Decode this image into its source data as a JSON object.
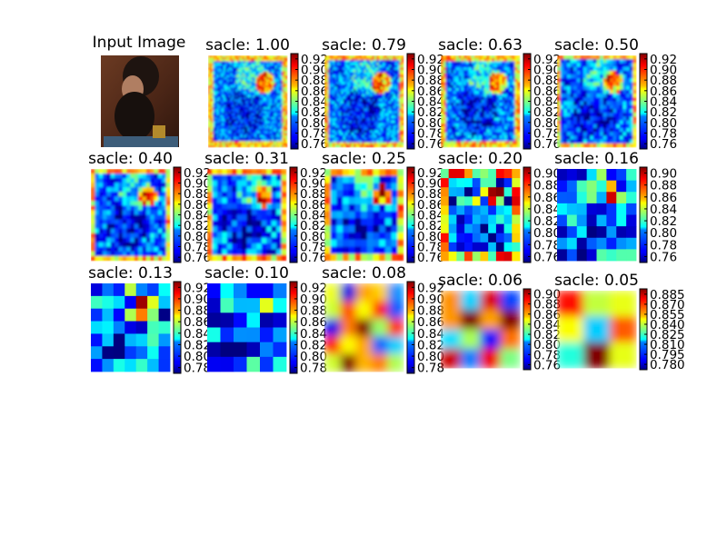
{
  "figure": {
    "input_title": "Input Image"
  },
  "chart_data": [
    {
      "type": "heatmap",
      "title": "sacle: 1.00",
      "colormap": "jet",
      "colorbar_ticks": [
        "0.92",
        "0.90",
        "0.88",
        "0.86",
        "0.84",
        "0.82",
        "0.80",
        "0.78",
        "0.76"
      ],
      "colorbar_range": [
        0.75,
        0.93
      ]
    },
    {
      "type": "heatmap",
      "title": "sacle: 0.79",
      "colormap": "jet",
      "colorbar_ticks": [
        "0.92",
        "0.90",
        "0.88",
        "0.86",
        "0.84",
        "0.82",
        "0.80",
        "0.78",
        "0.76"
      ],
      "colorbar_range": [
        0.75,
        0.93
      ]
    },
    {
      "type": "heatmap",
      "title": "sacle: 0.63",
      "colormap": "jet",
      "colorbar_ticks": [
        "0.92",
        "0.90",
        "0.88",
        "0.86",
        "0.84",
        "0.82",
        "0.80",
        "0.78",
        "0.76"
      ],
      "colorbar_range": [
        0.75,
        0.93
      ]
    },
    {
      "type": "heatmap",
      "title": "sacle: 0.50",
      "colormap": "jet",
      "colorbar_ticks": [
        "0.92",
        "0.90",
        "0.88",
        "0.86",
        "0.84",
        "0.82",
        "0.80",
        "0.78",
        "0.76"
      ],
      "colorbar_range": [
        0.75,
        0.93
      ]
    },
    {
      "type": "heatmap",
      "title": "sacle: 0.40",
      "colormap": "jet",
      "colorbar_ticks": [
        "0.92",
        "0.90",
        "0.88",
        "0.86",
        "0.84",
        "0.82",
        "0.80",
        "0.78",
        "0.76"
      ],
      "colorbar_range": [
        0.75,
        0.93
      ]
    },
    {
      "type": "heatmap",
      "title": "sacle: 0.31",
      "colormap": "jet",
      "colorbar_ticks": [
        "0.92",
        "0.90",
        "0.88",
        "0.86",
        "0.84",
        "0.82",
        "0.80",
        "0.78",
        "0.76"
      ],
      "colorbar_range": [
        0.75,
        0.93
      ]
    },
    {
      "type": "heatmap",
      "title": "sacle: 0.25",
      "colormap": "jet",
      "colorbar_ticks": [
        "0.92",
        "0.90",
        "0.88",
        "0.86",
        "0.84",
        "0.82",
        "0.80",
        "0.78",
        "0.76"
      ],
      "colorbar_range": [
        0.75,
        0.93
      ]
    },
    {
      "type": "heatmap",
      "title": "sacle: 0.20",
      "colormap": "jet",
      "colorbar_ticks": [
        "0.90",
        "0.88",
        "0.86",
        "0.84",
        "0.82",
        "0.80",
        "0.78",
        "0.76"
      ],
      "colorbar_range": [
        0.75,
        0.91
      ]
    },
    {
      "type": "heatmap",
      "title": "sacle: 0.16",
      "colormap": "jet",
      "colorbar_ticks": [
        "0.90",
        "0.88",
        "0.86",
        "0.84",
        "0.82",
        "0.80",
        "0.78",
        "0.76"
      ],
      "colorbar_range": [
        0.75,
        0.91
      ]
    },
    {
      "type": "heatmap",
      "title": "sacle: 0.13",
      "colormap": "jet",
      "colorbar_ticks": [
        "0.92",
        "0.90",
        "0.88",
        "0.86",
        "0.84",
        "0.82",
        "0.80",
        "0.78"
      ],
      "colorbar_range": [
        0.77,
        0.93
      ]
    },
    {
      "type": "heatmap",
      "title": "sacle: 0.10",
      "colormap": "jet",
      "colorbar_ticks": [
        "0.92",
        "0.90",
        "0.88",
        "0.86",
        "0.84",
        "0.82",
        "0.80",
        "0.78"
      ],
      "colorbar_range": [
        0.77,
        0.93
      ]
    },
    {
      "type": "heatmap",
      "title": "sacle: 0.08",
      "colormap": "jet",
      "colorbar_ticks": [
        "0.92",
        "0.90",
        "0.88",
        "0.86",
        "0.84",
        "0.82",
        "0.80",
        "0.78"
      ],
      "colorbar_range": [
        0.77,
        0.93
      ]
    },
    {
      "type": "heatmap",
      "title": "sacle: 0.06",
      "colormap": "jet",
      "colorbar_ticks": [
        "0.90",
        "0.88",
        "0.86",
        "0.84",
        "0.82",
        "0.80",
        "0.78",
        "0.76"
      ],
      "colorbar_range": [
        0.75,
        0.91
      ]
    },
    {
      "type": "heatmap",
      "title": "sacle: 0.05",
      "colormap": "jet",
      "colorbar_ticks": [
        "0.885",
        "0.870",
        "0.855",
        "0.840",
        "0.825",
        "0.810",
        "0.795",
        "0.780"
      ],
      "colorbar_range": [
        0.772,
        0.893
      ]
    }
  ]
}
